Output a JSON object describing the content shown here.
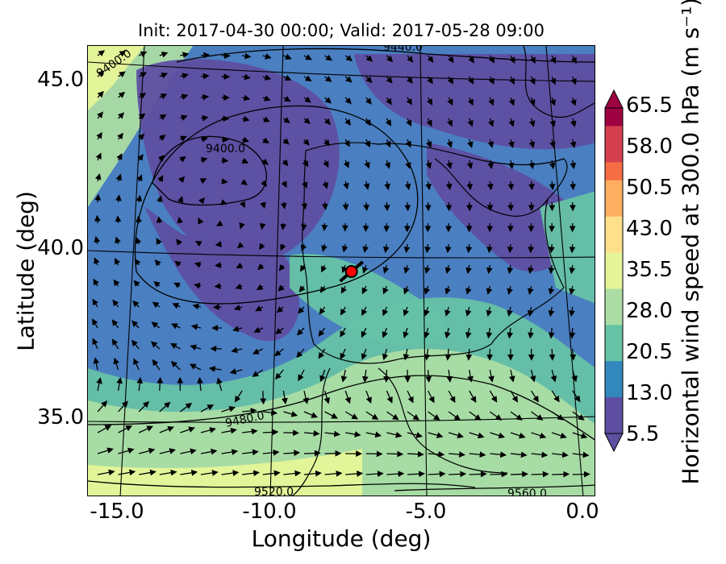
{
  "title": "Init: 2017-04-30 00:00; Valid: 2017-05-28 09:00",
  "chart_data": {
    "type": "heatmap",
    "xlabel": "Longitude (deg)",
    "ylabel": "Latitude (deg)",
    "xlim": [
      -16.0,
      0.2
    ],
    "ylim": [
      32.6,
      46.0
    ],
    "x_ticks": [
      "-15.0",
      "-10.0",
      "-5.0",
      "0.0"
    ],
    "x_tick_values": [
      -15.0,
      -10.0,
      -5.0,
      0.0
    ],
    "y_ticks": [
      "45.0",
      "40.0",
      "35.0"
    ],
    "y_tick_values": [
      45.0,
      40.0,
      35.0
    ],
    "colorbar": {
      "label": "Horizontal wind speed at 300.0 hPa (m s⁻¹)",
      "ticks": [
        "65.5",
        "58.0",
        "50.5",
        "43.0",
        "35.5",
        "28.0",
        "20.5",
        "13.0",
        "5.5"
      ],
      "min": 5.5,
      "max": 65.5,
      "extend": "both",
      "colormap": "Spectral_r"
    },
    "contour_labels": [
      "9400.0",
      "9400.0",
      "9440.0",
      "9480.0",
      "9520.0",
      "9560.0"
    ],
    "marker": {
      "lon": -7.6,
      "lat": 39.3,
      "color": "#ff0000"
    },
    "colors": {
      "c1": "#5e4fa2",
      "c2": "#3288bd",
      "c3": "#66c2a5",
      "c4": "#abdda4",
      "c5": "#e6f598",
      "c6": "#fee08b",
      "c7": "#fdae61",
      "c8": "#f46d43",
      "c9": "#d53e4f",
      "c10": "#9e0142"
    }
  }
}
